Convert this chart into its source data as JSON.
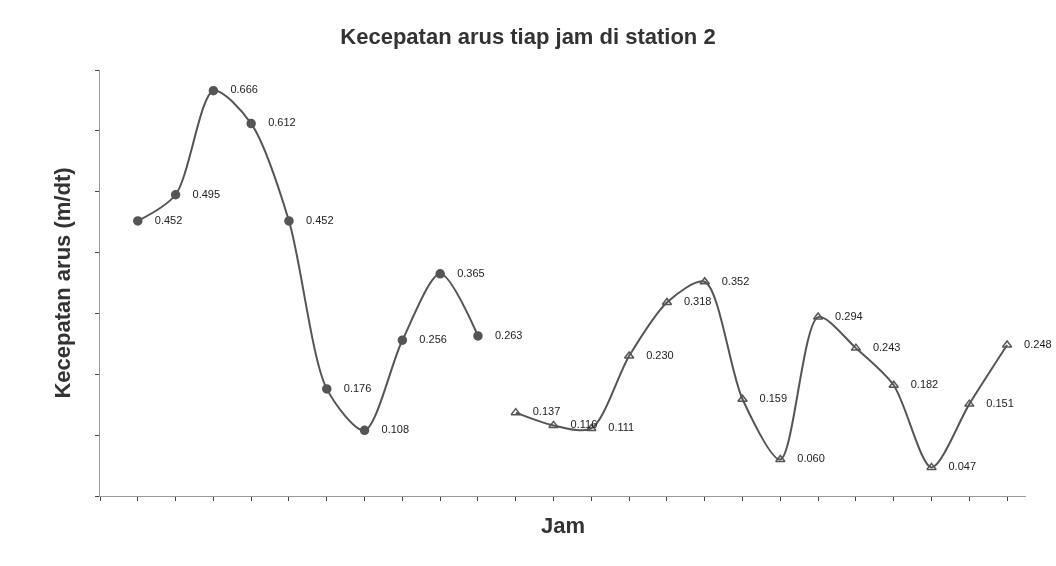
{
  "chart_data": {
    "type": "line",
    "title": "Kecepatan arus tiap jam di station 2",
    "xlabel": "Jam",
    "ylabel": "Kecepatan arus (m/dt)",
    "categories": [
      null,
      null,
      null,
      null,
      null,
      null,
      null,
      null,
      null,
      null,
      null,
      null,
      null,
      null,
      null,
      null,
      null,
      null,
      null,
      null,
      null,
      null,
      null,
      null,
      null
    ],
    "series": [
      {
        "color": "#555555",
        "marker": "circle",
        "values": [
          null,
          0.452,
          0.495,
          0.666,
          0.612,
          0.452,
          0.176,
          0.108,
          0.256,
          0.365,
          0.263,
          null,
          null,
          null,
          null,
          null,
          null,
          null,
          null,
          null,
          null,
          null,
          null,
          null,
          null
        ],
        "value_labels": [
          null,
          "0.452",
          "0.495",
          "0.666",
          "0.612",
          "0.452",
          "0.176",
          "0.108",
          "0.256",
          "0.365",
          "0.263",
          null,
          null,
          null,
          null,
          null,
          null,
          null,
          null,
          null,
          null,
          null,
          null,
          null,
          null
        ]
      },
      {
        "color": "#555555",
        "marker": "triangle",
        "values": [
          null,
          null,
          null,
          null,
          null,
          null,
          null,
          null,
          null,
          null,
          null,
          0.137,
          0.116,
          0.111,
          0.23,
          0.318,
          0.352,
          0.159,
          0.06,
          0.294,
          0.243,
          0.182,
          0.047,
          0.151,
          0.248
        ],
        "value_labels": [
          null,
          null,
          null,
          null,
          null,
          null,
          null,
          null,
          null,
          null,
          null,
          "0.137",
          "0.116",
          "0.111",
          "0.230",
          "0.318",
          "0.352",
          "0.159",
          "0.060",
          "0.294",
          "0.243",
          "0.182",
          "0.047",
          "0.151",
          "0.248"
        ]
      }
    ],
    "ylim": [
      0,
      0.7
    ],
    "yticks": [
      {
        "value": 0,
        "label": null
      },
      {
        "value": 0.1,
        "label": null
      },
      {
        "value": 0.2,
        "label": null
      },
      {
        "value": 0.3,
        "label": null
      },
      {
        "value": 0.4,
        "label": null
      },
      {
        "value": 0.5,
        "label": null
      },
      {
        "value": 0.6,
        "label": null
      },
      {
        "value": 0.7,
        "label": null
      }
    ],
    "line_style": "solid"
  }
}
